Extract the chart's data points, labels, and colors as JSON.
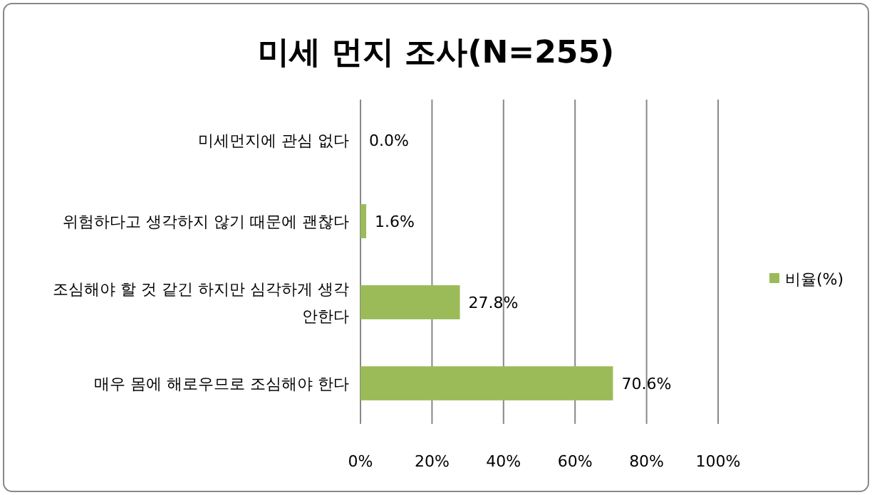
{
  "chart_data": {
    "type": "bar",
    "orientation": "horizontal",
    "title": "미세 먼지 조사(N=255)",
    "categories": [
      "미세먼지에 관심 없다",
      "위험하다고 생각하지 않기 때문에 괜찮다",
      "조심해야 할 것 같긴 하지만 심각하게 생각 안한다",
      "매우 몸에 해로우므로 조심해야 한다"
    ],
    "series": [
      {
        "name": "비율(%)",
        "color": "#9bbb59",
        "values": [
          0.0,
          1.6,
          27.8,
          70.6
        ],
        "value_labels": [
          "0.0%",
          "1.6%",
          "27.8%",
          "70.6%"
        ]
      }
    ],
    "xlim": [
      0,
      100
    ],
    "xticks": [
      {
        "value": 0,
        "label": "0%"
      },
      {
        "value": 20,
        "label": "20%"
      },
      {
        "value": 40,
        "label": "40%"
      },
      {
        "value": 60,
        "label": "60%"
      },
      {
        "value": 80,
        "label": "80%"
      },
      {
        "value": 100,
        "label": "100%"
      }
    ],
    "grid": "x",
    "legend": "right"
  }
}
